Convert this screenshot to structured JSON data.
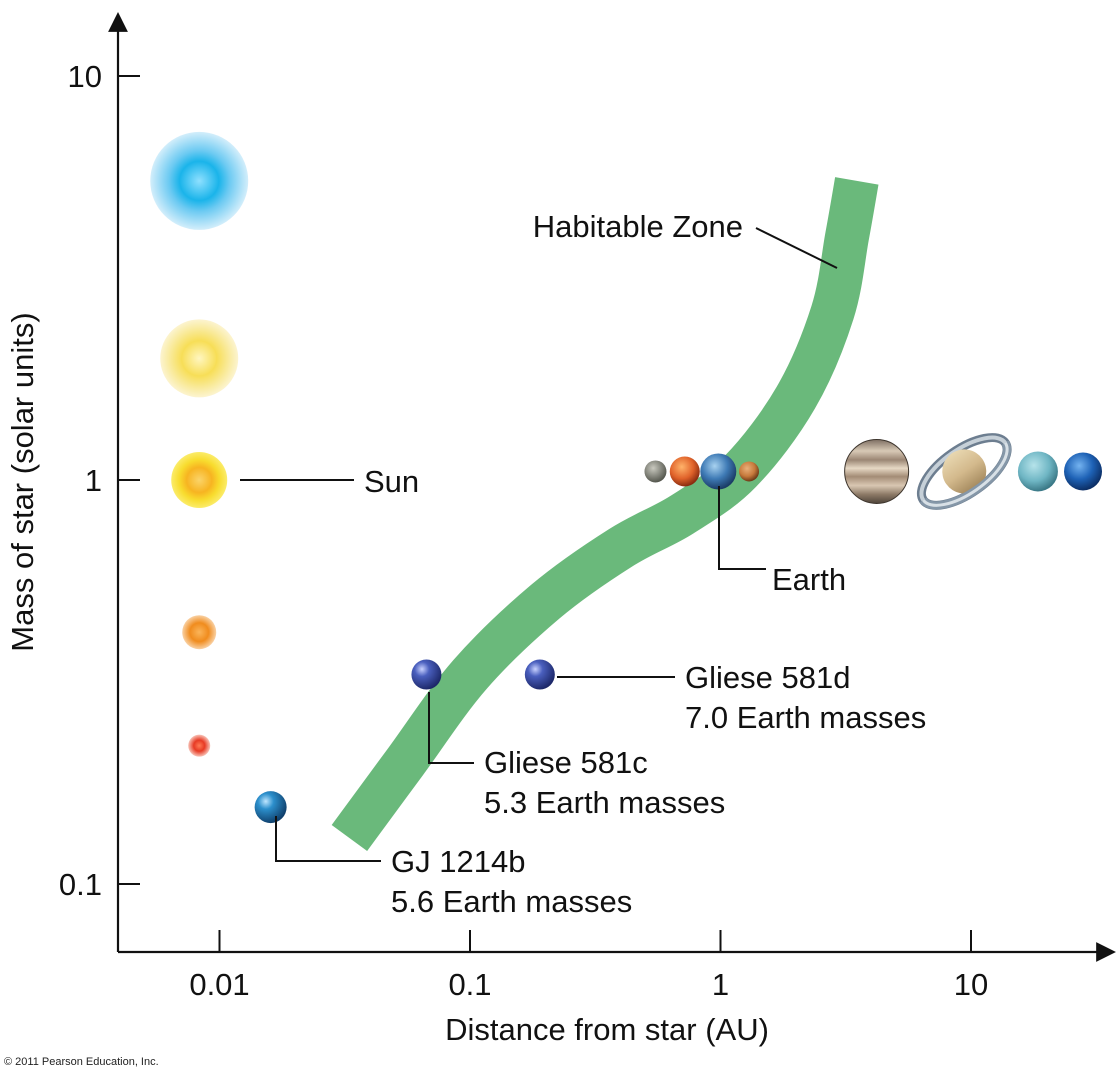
{
  "chart_data": {
    "type": "scatter",
    "title": "",
    "xlabel": "Distance from star (AU)",
    "ylabel": "Mass of star (solar units)",
    "x_scale": "log",
    "y_scale": "log",
    "xlim": [
      0.004,
      30
    ],
    "ylim": [
      0.08,
      15
    ],
    "x_ticks": [
      {
        "value": 0.01,
        "label": "0.01"
      },
      {
        "value": 0.1,
        "label": "0.1"
      },
      {
        "value": 1,
        "label": "1"
      },
      {
        "value": 10,
        "label": "10"
      }
    ],
    "y_ticks": [
      {
        "value": 0.1,
        "label": "0.1"
      },
      {
        "value": 1,
        "label": "1"
      },
      {
        "value": 10,
        "label": "10"
      }
    ],
    "grid": false,
    "habitable_zone": {
      "label": "Habitable Zone",
      "color": "#6ab97b",
      "centerline": [
        {
          "x": 0.033,
          "y": 0.13
        },
        {
          "x": 0.055,
          "y": 0.2
        },
        {
          "x": 0.1,
          "y": 0.33
        },
        {
          "x": 0.2,
          "y": 0.5
        },
        {
          "x": 0.4,
          "y": 0.68
        },
        {
          "x": 0.7,
          "y": 0.82
        },
        {
          "x": 1.2,
          "y": 1.05
        },
        {
          "x": 2.0,
          "y": 1.6
        },
        {
          "x": 2.8,
          "y": 2.6
        },
        {
          "x": 3.2,
          "y": 4.0
        },
        {
          "x": 3.5,
          "y": 5.5
        }
      ]
    },
    "stars": [
      {
        "name": "blue-star",
        "y": 5.5,
        "color": "#1ab4ea",
        "glow": "#9fd9f5",
        "size": "xlarge"
      },
      {
        "name": "yellow-white-star",
        "y": 2.0,
        "color": "#f7de57",
        "glow": "#fbf0b0",
        "size": "large"
      },
      {
        "name": "sun-star",
        "y": 1.0,
        "color": "#f8c21c",
        "glow": "#fbe95a",
        "size": "medium",
        "label": "Sun"
      },
      {
        "name": "orange-star",
        "y": 0.42,
        "color": "#f59a2a",
        "glow": "#f8c990",
        "size": "small"
      },
      {
        "name": "red-star",
        "y": 0.22,
        "color": "#ee4a30",
        "glow": "#f7b6a4",
        "size": "tiny"
      }
    ],
    "star_column_x": 0.0083,
    "solar_system": {
      "y": 1.05,
      "planets": [
        {
          "name": "mercury",
          "x": 0.55,
          "color": "#8d8f84"
        },
        {
          "name": "venus",
          "x": 0.72,
          "color": "#e0622a"
        },
        {
          "name": "earth",
          "x": 0.98,
          "color": "#3e7ab5"
        },
        {
          "name": "mars",
          "x": 1.3,
          "color": "#c77a3c"
        },
        {
          "name": "jupiter",
          "x": 4.2,
          "color": "#a4917c"
        },
        {
          "name": "saturn",
          "x": 9.4,
          "color": "#d3b98c"
        },
        {
          "name": "uranus",
          "x": 18.5,
          "color": "#6fb6c4"
        },
        {
          "name": "neptune",
          "x": 28.0,
          "color": "#1e62b6"
        }
      ],
      "label": "Earth",
      "label_planet": "earth"
    },
    "exoplanets": [
      {
        "name": "Gliese 581c",
        "x": 0.067,
        "y": 0.33,
        "color": "#3a4fa6",
        "label_lines": [
          "Gliese 581c",
          "5.3 Earth masses"
        ]
      },
      {
        "name": "Gliese 581d",
        "x": 0.19,
        "y": 0.33,
        "color": "#3a4fa6",
        "label_lines": [
          "Gliese 581d",
          "7.0 Earth masses"
        ]
      },
      {
        "name": "GJ 1214b",
        "x": 0.016,
        "y": 0.155,
        "color": "#2582c0",
        "label_lines": [
          "GJ 1214b",
          "5.6 Earth masses"
        ]
      }
    ]
  },
  "copyright": "© 2011 Pearson Education, Inc."
}
